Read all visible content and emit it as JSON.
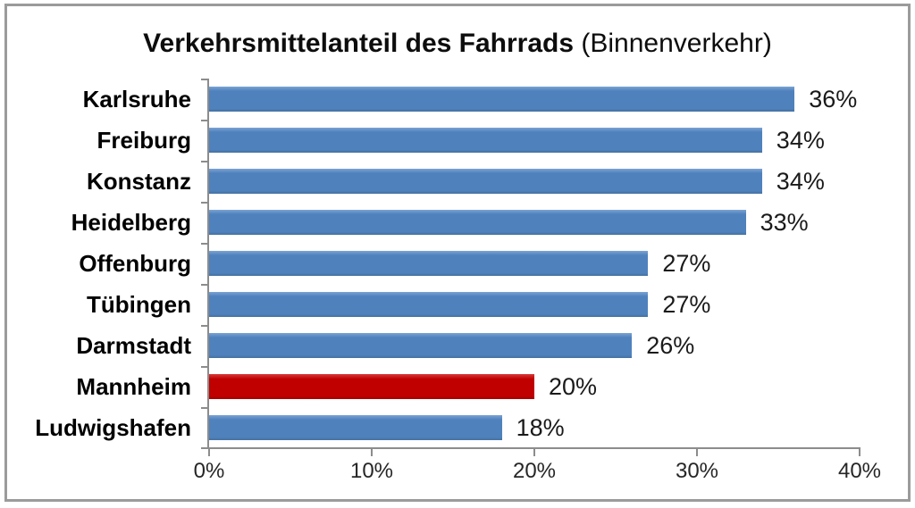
{
  "frame": {
    "border_color": "#9b9b9b"
  },
  "title": {
    "bold_part": "Verkehrsmittelanteil des Fahrrads",
    "normal_part": " (Binnenverkehr)"
  },
  "chart_data": {
    "type": "bar",
    "orientation": "horizontal",
    "title": "Verkehrsmittelanteil des Fahrrads (Binnenverkehr)",
    "categories": [
      "Karlsruhe",
      "Freiburg",
      "Konstanz",
      "Heidelberg",
      "Offenburg",
      "Tübingen",
      "Darmstadt",
      "Mannheim",
      "Ludwigshafen"
    ],
    "values": [
      36,
      34,
      34,
      33,
      27,
      27,
      26,
      20,
      18
    ],
    "value_labels": [
      "36%",
      "34%",
      "34%",
      "33%",
      "27%",
      "27%",
      "26%",
      "20%",
      "18%"
    ],
    "x_tick_labels": [
      "0%",
      "10%",
      "20%",
      "30%",
      "40%"
    ],
    "x_tick_values": [
      0,
      10,
      20,
      30,
      40
    ],
    "xlim": [
      0,
      40
    ],
    "grid": false,
    "legend": false,
    "bar_color": "#4F81BD",
    "highlight_color": "#C00000",
    "highlight_category": "Mannheim",
    "axis_color": "#8C8C8C",
    "xlabel": "",
    "ylabel": ""
  }
}
